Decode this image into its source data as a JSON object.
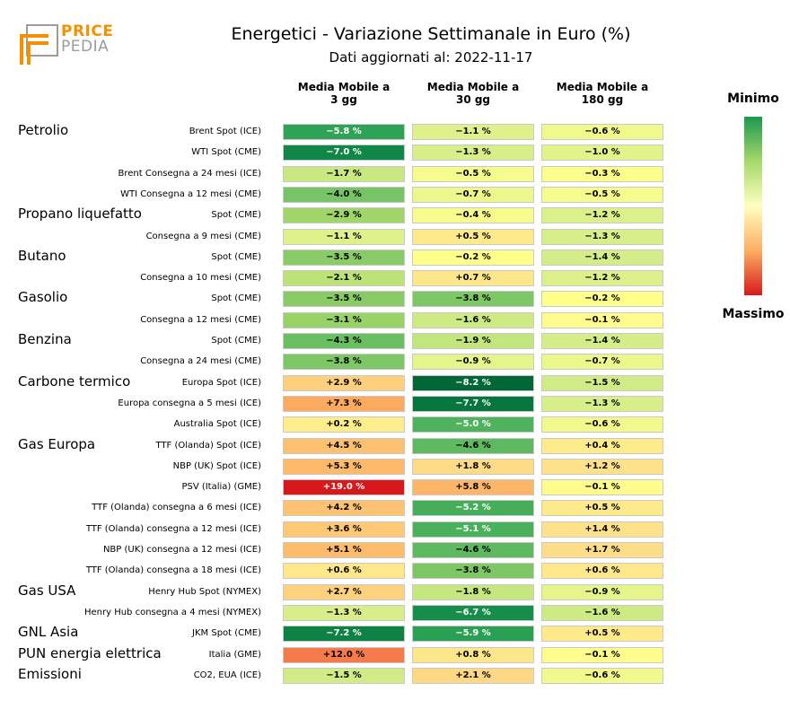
{
  "header": {
    "logo_top": "PRICE",
    "logo_bottom": "PEDIA",
    "title": "Energetici - Variazione Settimanale in Euro (%)",
    "subtitle": "Dati aggiornati al: 2022-11-17"
  },
  "legend": {
    "top_label": "Minimo",
    "bottom_label": "Massimo",
    "colors": {
      "min": "#1a9850",
      "mid": "#ffffbf",
      "max": "#d7191c"
    }
  },
  "chart_data": {
    "type": "heatmap",
    "title": "Energetici - Variazione Settimanale in Euro (%)",
    "columns": [
      "Media Mobile a\n3 gg",
      "Media Mobile a\n30 gg",
      "Media Mobile a\n180 gg"
    ],
    "value_format": "%",
    "groups": [
      {
        "name": "Petrolio",
        "rows": [
          {
            "label": "Brent Spot (ICE)",
            "values": [
              -5.8,
              -1.1,
              -0.6
            ]
          },
          {
            "label": "WTI Spot (CME)",
            "values": [
              -7.0,
              -1.3,
              -1.0
            ]
          },
          {
            "label": "Brent Consegna a 24 mesi (ICE)",
            "values": [
              -1.7,
              -0.5,
              -0.3
            ]
          },
          {
            "label": "WTI Consegna a 12 mesi (CME)",
            "values": [
              -4.0,
              -0.7,
              -0.5
            ]
          }
        ]
      },
      {
        "name": "Propano liquefatto",
        "rows": [
          {
            "label": "Spot (CME)",
            "values": [
              -2.9,
              -0.4,
              -1.2
            ]
          },
          {
            "label": "Consegna a 9 mesi (CME)",
            "values": [
              -1.1,
              0.5,
              -1.3
            ]
          }
        ]
      },
      {
        "name": "Butano",
        "rows": [
          {
            "label": "Spot (CME)",
            "values": [
              -3.5,
              -0.2,
              -1.4
            ]
          },
          {
            "label": "Consegna a 10 mesi (CME)",
            "values": [
              -2.1,
              0.7,
              -1.2
            ]
          }
        ]
      },
      {
        "name": "Gasolio",
        "rows": [
          {
            "label": "Spot (CME)",
            "values": [
              -3.5,
              -3.8,
              -0.2
            ]
          },
          {
            "label": "Consegna a 12 mesi (CME)",
            "values": [
              -3.1,
              -1.6,
              -0.1
            ]
          }
        ]
      },
      {
        "name": "Benzina",
        "rows": [
          {
            "label": "Spot (CME)",
            "values": [
              -4.3,
              -1.9,
              -1.4
            ]
          },
          {
            "label": "Consegna a 24 mesi (CME)",
            "values": [
              -3.8,
              -0.9,
              -0.7
            ]
          }
        ]
      },
      {
        "name": "Carbone termico",
        "rows": [
          {
            "label": "Europa Spot (ICE)",
            "values": [
              2.9,
              -8.2,
              -1.5
            ]
          },
          {
            "label": "Europa consegna a 5 mesi (ICE)",
            "values": [
              7.3,
              -7.7,
              -1.3
            ]
          },
          {
            "label": "Australia Spot (ICE)",
            "values": [
              0.2,
              -5.0,
              -0.6
            ]
          }
        ]
      },
      {
        "name": "Gas Europa",
        "rows": [
          {
            "label": "TTF (Olanda) Spot (ICE)",
            "values": [
              4.5,
              -4.6,
              0.4
            ]
          },
          {
            "label": "NBP (UK) Spot (ICE)",
            "values": [
              5.3,
              1.8,
              1.2
            ]
          },
          {
            "label": "PSV (Italia) (GME)",
            "values": [
              19.0,
              5.8,
              -0.1
            ]
          },
          {
            "label": "TTF (Olanda) consegna a 6 mesi (ICE)",
            "values": [
              4.2,
              -5.2,
              0.5
            ]
          },
          {
            "label": "TTF (Olanda) consegna a 12 mesi (ICE)",
            "values": [
              3.6,
              -5.1,
              1.4
            ]
          },
          {
            "label": "NBP (UK) consegna a 12 mesi (ICE)",
            "values": [
              5.1,
              -4.6,
              1.7
            ]
          },
          {
            "label": "TTF (Olanda) consegna a 18 mesi (ICE)",
            "values": [
              0.6,
              -3.8,
              0.6
            ]
          }
        ]
      },
      {
        "name": "Gas USA",
        "rows": [
          {
            "label": "Henry Hub Spot (NYMEX)",
            "values": [
              2.7,
              -1.8,
              -0.9
            ]
          },
          {
            "label": "Henry Hub consegna a 4 mesi (NYMEX)",
            "values": [
              -1.3,
              -6.7,
              -1.6
            ]
          }
        ]
      },
      {
        "name": "GNL Asia",
        "rows": [
          {
            "label": "JKM Spot (CME)",
            "values": [
              -7.2,
              -5.9,
              0.5
            ]
          }
        ]
      },
      {
        "name": "PUN energia elettrica",
        "rows": [
          {
            "label": "Italia (GME)",
            "values": [
              12.0,
              0.8,
              -0.1
            ]
          }
        ]
      },
      {
        "name": "Emissioni",
        "rows": [
          {
            "label": "CO2, EUA (ICE)",
            "values": [
              -1.5,
              2.1,
              -0.6
            ]
          }
        ]
      }
    ]
  }
}
